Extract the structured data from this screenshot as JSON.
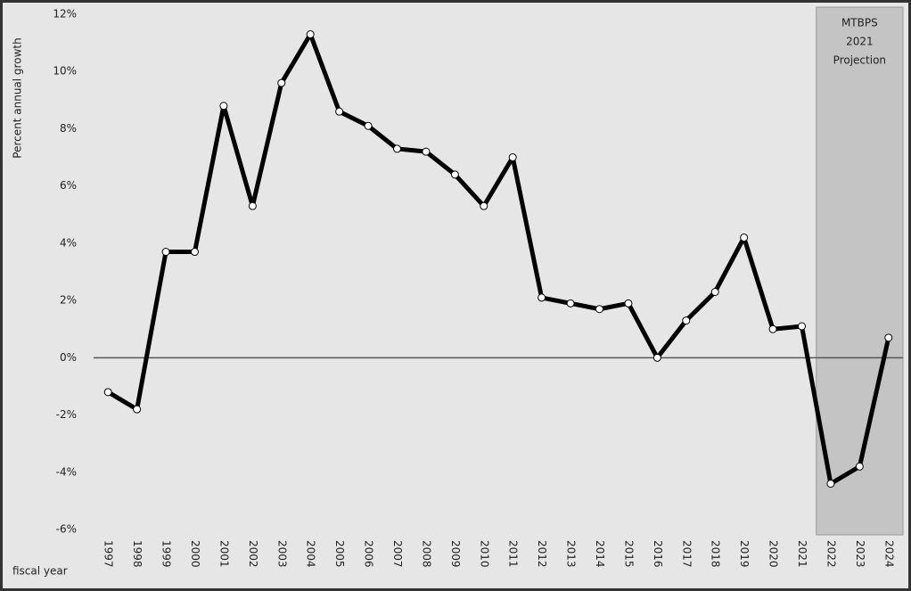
{
  "chart_data": {
    "type": "line",
    "y_axis_label": "Percent annual growth",
    "x_axis_label": "fiscal year",
    "annotation": [
      "MTBPS",
      "2021",
      "Projection"
    ],
    "categories": [
      "1997",
      "1998",
      "1999",
      "2000",
      "2001",
      "2002",
      "2003",
      "2004",
      "2005",
      "2006",
      "2007",
      "2008",
      "2009",
      "2010",
      "2011",
      "2012",
      "2013",
      "2014",
      "2015",
      "2016",
      "2017",
      "2018",
      "2019",
      "2020",
      "2021",
      "2022",
      "2023",
      "2024"
    ],
    "series": [
      {
        "color": "#000000",
        "values": [
          -1.2,
          -1.8,
          3.7,
          3.7,
          8.8,
          5.3,
          9.6,
          11.3,
          8.6,
          8.1,
          7.3,
          7.2,
          6.4,
          5.3,
          7.0,
          2.1,
          1.9,
          1.7,
          1.9,
          0.0,
          1.3,
          2.3,
          4.2,
          1.0,
          1.1,
          -4.4,
          -3.8,
          0.7
        ]
      }
    ],
    "ylim": [
      -6,
      12
    ],
    "yticks": [
      {
        "value": -6,
        "label": "-6%"
      },
      {
        "value": -4,
        "label": "-4%"
      },
      {
        "value": -2,
        "label": "-2%"
      },
      {
        "value": 0,
        "label": "0%"
      },
      {
        "value": 2,
        "label": "2%"
      },
      {
        "value": 4,
        "label": "4%"
      },
      {
        "value": 6,
        "label": "6%"
      },
      {
        "value": 8,
        "label": "8%"
      },
      {
        "value": 10,
        "label": "10%"
      },
      {
        "value": 12,
        "label": "12%"
      }
    ]
  }
}
